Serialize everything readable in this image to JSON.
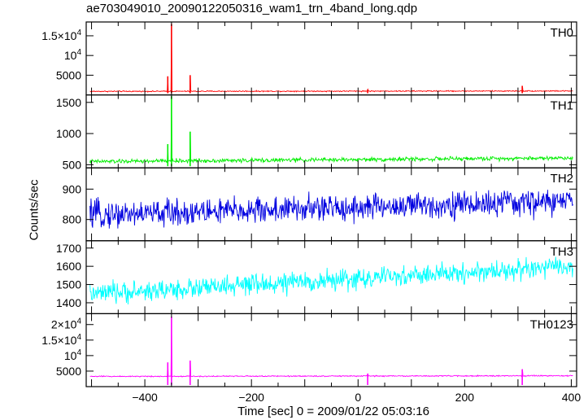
{
  "title": "ae703049010_20090122050316_wam1_trn_4band_long.qdp",
  "chart_data": {
    "type": "line",
    "title": "ae703049010_20090122050316_wam1_trn_4band_long.qdp",
    "xlabel": "Time [sec] 0 = 2009/01/22 05:03:16",
    "ylabel": "Counts/sec",
    "xlim": [
      -510,
      410
    ],
    "x_ticks": [
      -400,
      -200,
      0,
      200,
      400
    ],
    "panels": [
      {
        "name": "TH0",
        "color": "#ff0000",
        "ylim": [
          0,
          18500
        ],
        "y_ticks": [
          {
            "value": 5000,
            "label": "5000"
          },
          {
            "value": 10000,
            "label": "10^4"
          },
          {
            "value": 15000,
            "label": "1.5×10^4"
          }
        ],
        "baseline_start": 900,
        "baseline_end": 1000,
        "noise": 120,
        "spikes": [
          {
            "x": -357,
            "y": 4700
          },
          {
            "x": -350,
            "y": 18000
          },
          {
            "x": -315,
            "y": 5000
          },
          {
            "x": 18,
            "y": 1400
          },
          {
            "x": 308,
            "y": 2300
          }
        ]
      },
      {
        "name": "TH1",
        "color": "#00ee00",
        "ylim": [
          450,
          1620
        ],
        "y_ticks": [
          {
            "value": 500,
            "label": "500"
          },
          {
            "value": 1000,
            "label": "1000"
          },
          {
            "value": 1500,
            "label": "1500"
          }
        ],
        "baseline_start": 550,
        "baseline_end": 610,
        "noise": 28,
        "spikes": [
          {
            "x": -357,
            "y": 830
          },
          {
            "x": -350,
            "y": 1600
          },
          {
            "x": -315,
            "y": 1030
          }
        ]
      },
      {
        "name": "TH2",
        "color": "#0000e0",
        "ylim": [
          730,
          970
        ],
        "y_ticks": [
          {
            "value": 800,
            "label": "800"
          },
          {
            "value": 900,
            "label": "900"
          }
        ],
        "baseline_start": 815,
        "baseline_end": 860,
        "noise": 38,
        "spikes": []
      },
      {
        "name": "TH3",
        "color": "#00ffff",
        "ylim": [
          1340,
          1740
        ],
        "y_ticks": [
          {
            "value": 1400,
            "label": "1400"
          },
          {
            "value": 1500,
            "label": "1500"
          },
          {
            "value": 1600,
            "label": "1600"
          },
          {
            "value": 1700,
            "label": "1700"
          }
        ],
        "baseline_start": 1445,
        "baseline_end": 1600,
        "noise": 48,
        "spikes": []
      },
      {
        "name": "TH0123",
        "color": "#ff00ff",
        "ylim": [
          0,
          23500
        ],
        "y_ticks": [
          {
            "value": 5000,
            "label": "5000"
          },
          {
            "value": 10000,
            "label": "10^4"
          },
          {
            "value": 15000,
            "label": "1.5×10^4"
          },
          {
            "value": 20000,
            "label": "2×10^4"
          }
        ],
        "baseline_start": 3300,
        "baseline_end": 3500,
        "noise": 150,
        "spikes": [
          {
            "x": -357,
            "y": 7800
          },
          {
            "x": -350,
            "y": 22500
          },
          {
            "x": -315,
            "y": 8400
          },
          {
            "x": 18,
            "y": 4200
          },
          {
            "x": 308,
            "y": 5600
          }
        ]
      }
    ]
  }
}
